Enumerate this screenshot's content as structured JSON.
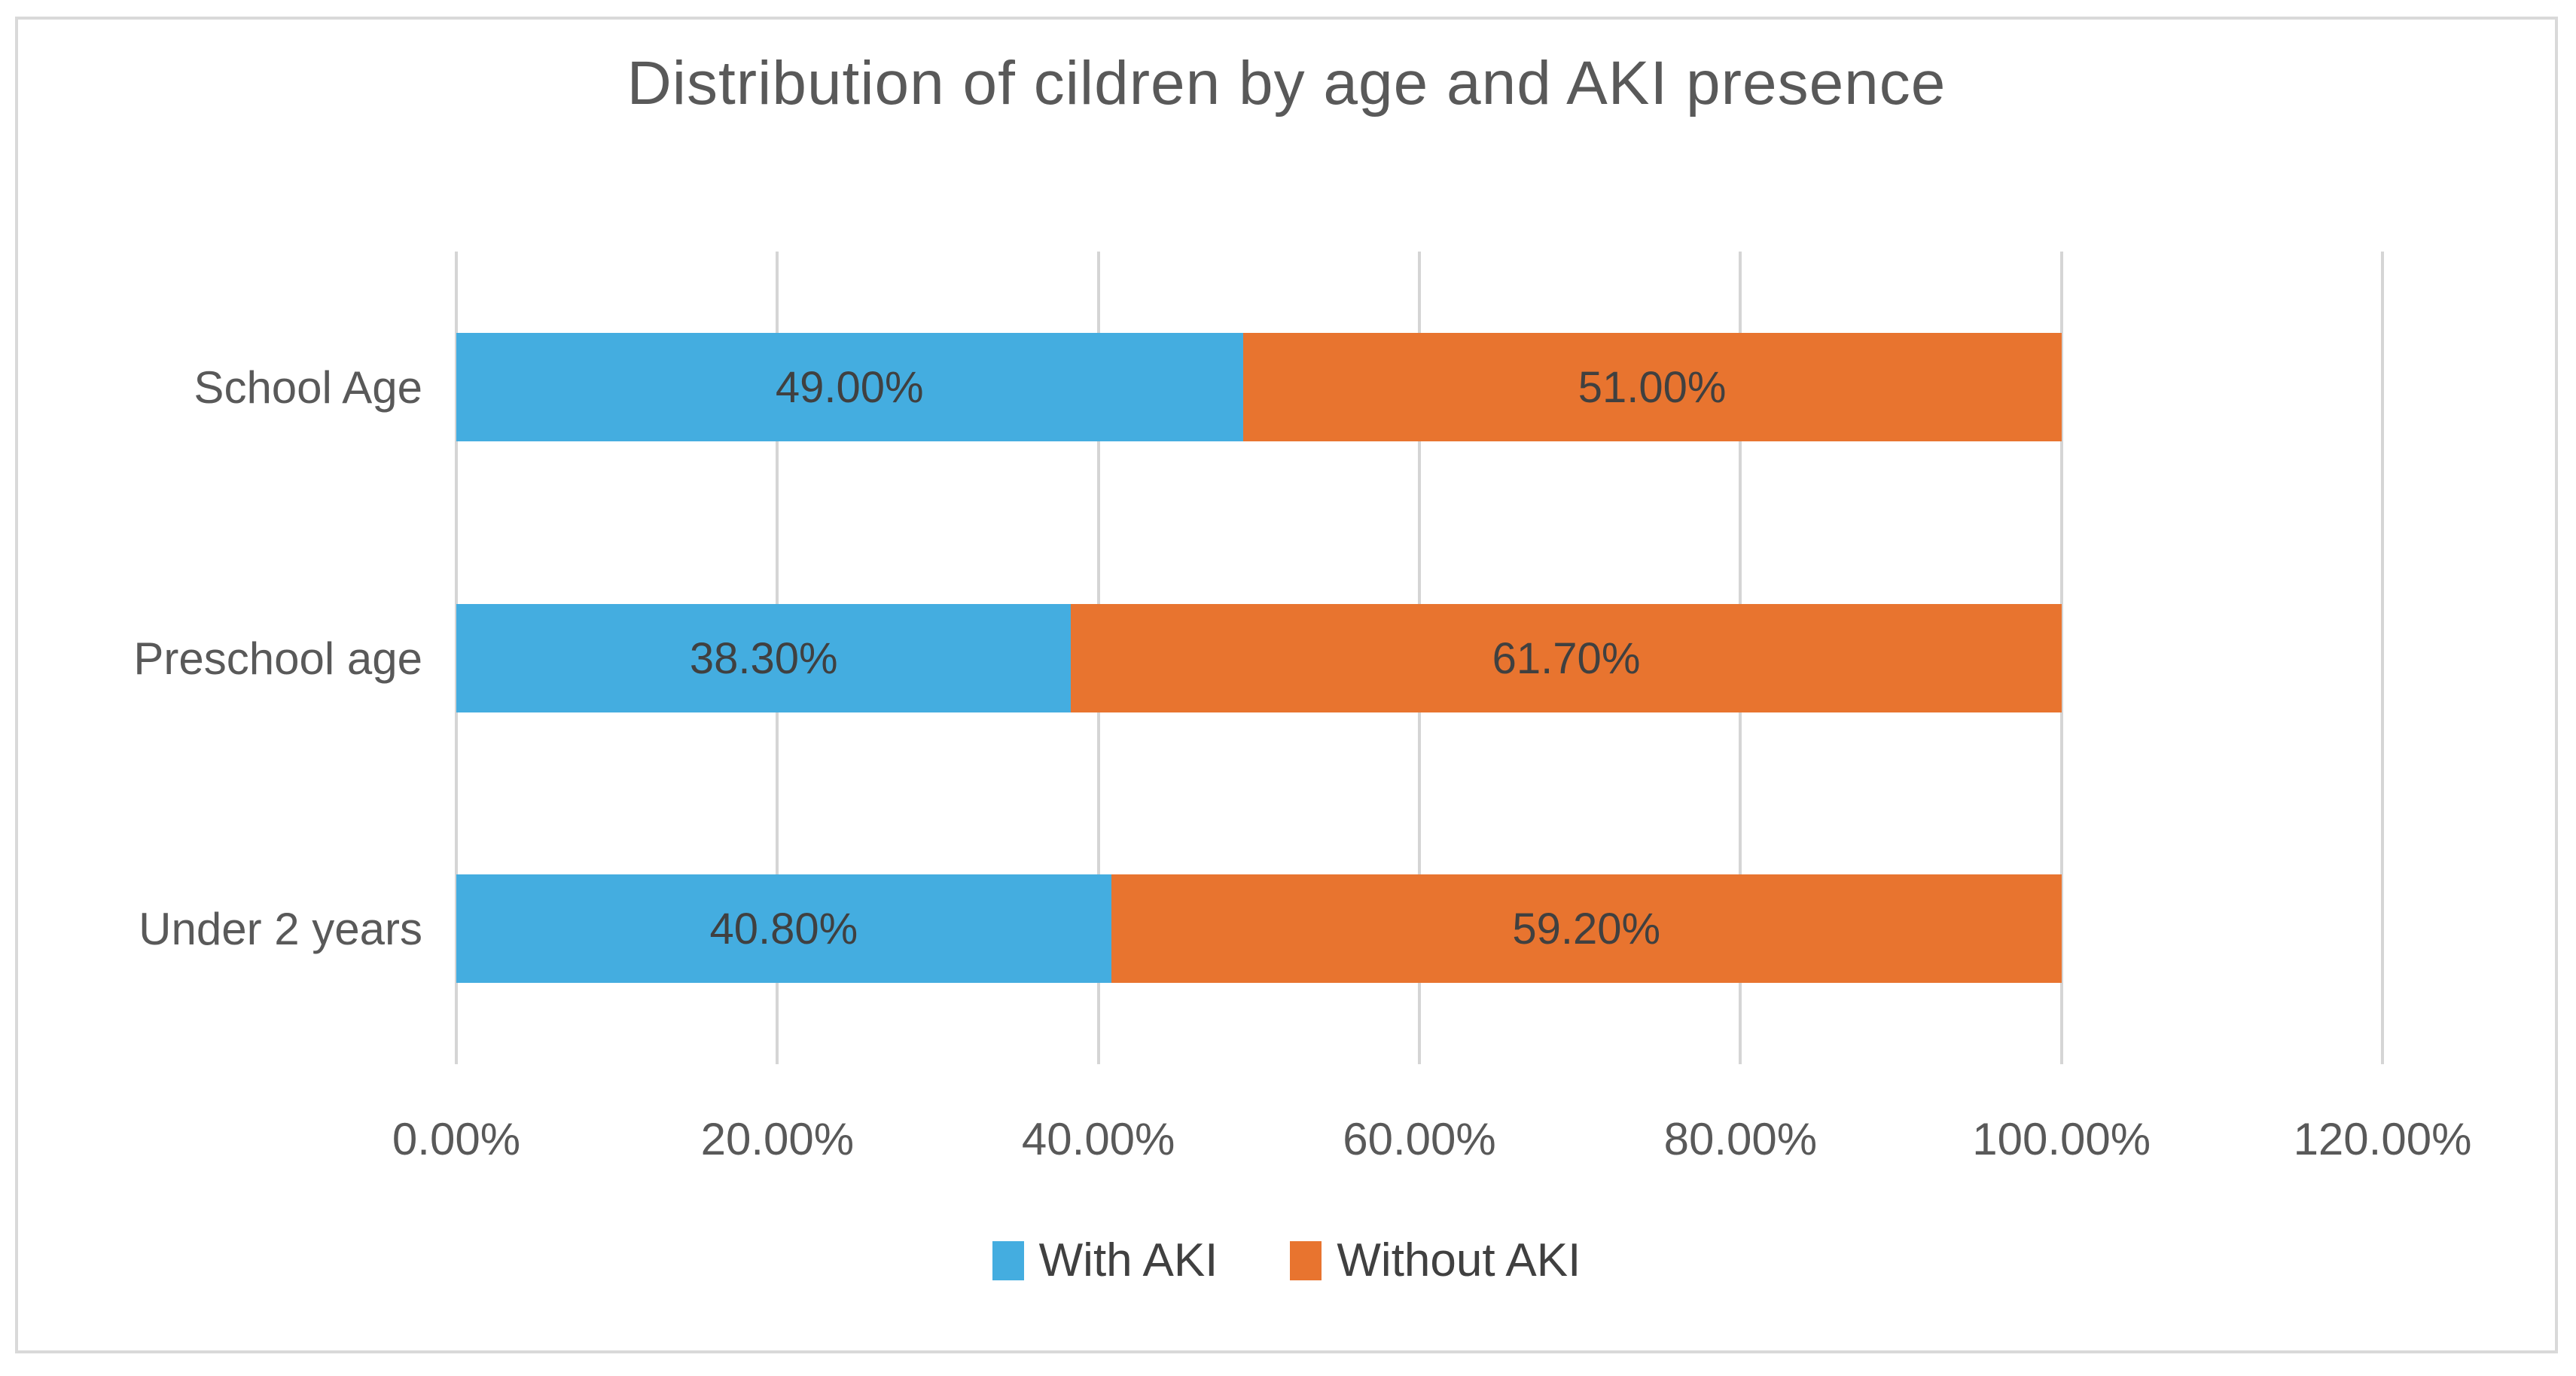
{
  "chart_data": {
    "type": "bar",
    "orientation": "horizontal",
    "stacked": true,
    "title": "Distribution of cildren by age and AKI presence",
    "categories": [
      "School Age",
      "Preschool age",
      "Under 2 years"
    ],
    "series": [
      {
        "name": "With AKI",
        "color": "#44ade0",
        "values": [
          49.0,
          38.3,
          40.8
        ],
        "data_labels": [
          "49.00%",
          "38.30%",
          "40.80%"
        ]
      },
      {
        "name": "Without AKI",
        "color": "#e8742f",
        "values": [
          51.0,
          61.7,
          59.2
        ],
        "data_labels": [
          "51.00%",
          "61.70%",
          "59.20%"
        ]
      }
    ],
    "x_axis": {
      "min": 0,
      "max": 120,
      "tick_step": 20,
      "tick_labels": [
        "0.00%",
        "20.00%",
        "40.00%",
        "60.00%",
        "80.00%",
        "100.00%",
        "120.00%"
      ]
    },
    "gridlines": true,
    "legend": {
      "position": "bottom",
      "entries": [
        "With AKI",
        "Without AKI"
      ]
    },
    "colors": {
      "gridline": "#d5d5d5",
      "frame_border": "#d9d9d9",
      "axis_text": "#595959",
      "data_label_text": "#404040",
      "title_text": "#595959",
      "background": "#ffffff"
    }
  }
}
